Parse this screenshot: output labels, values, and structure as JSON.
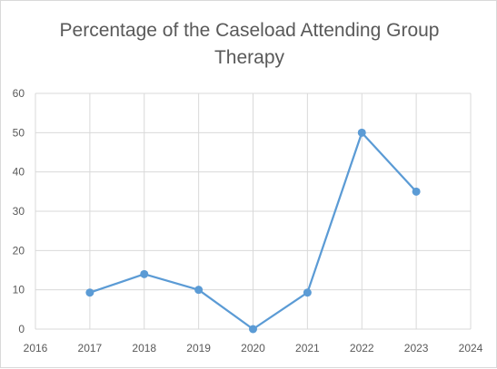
{
  "chart_data": {
    "type": "line",
    "title_lines": [
      "Percentage of the Caseload Attending Group",
      "Therapy"
    ],
    "xlabel": "",
    "ylabel": "",
    "x_ticks": [
      2016,
      2017,
      2018,
      2019,
      2020,
      2021,
      2022,
      2023,
      2024
    ],
    "y_ticks": [
      0,
      10,
      20,
      30,
      40,
      50,
      60
    ],
    "xlim": [
      2016,
      2024
    ],
    "ylim": [
      0,
      60
    ],
    "grid": true,
    "legend": "none",
    "series": [
      {
        "color": "#5b9bd5",
        "x": [
          2017,
          2018,
          2019,
          2020,
          2021,
          2022,
          2023
        ],
        "y": [
          9.3,
          14,
          10,
          0,
          9.3,
          50,
          35
        ]
      }
    ]
  }
}
